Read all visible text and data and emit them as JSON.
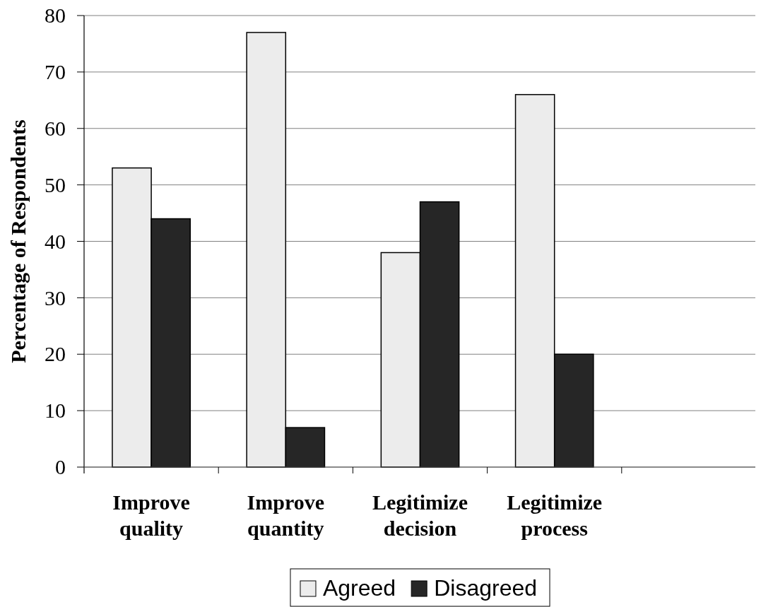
{
  "chart_data": {
    "type": "bar",
    "ylabel": "Percentage of Respondents",
    "categories": [
      "Improve quality",
      "Improve quantity",
      "Legitimize decision",
      "Legitimize process",
      null
    ],
    "series": [
      {
        "name": "Agreed",
        "color": "#ececec",
        "values": [
          53,
          77,
          38,
          66,
          null
        ]
      },
      {
        "name": "Disagreed",
        "color": "#262626",
        "values": [
          44,
          7,
          47,
          20,
          null
        ]
      }
    ],
    "ylim": [
      0,
      80
    ],
    "yticks": [
      0,
      10,
      20,
      30,
      40,
      50,
      60,
      70,
      80
    ],
    "grid": "y",
    "legend": "bottom"
  }
}
